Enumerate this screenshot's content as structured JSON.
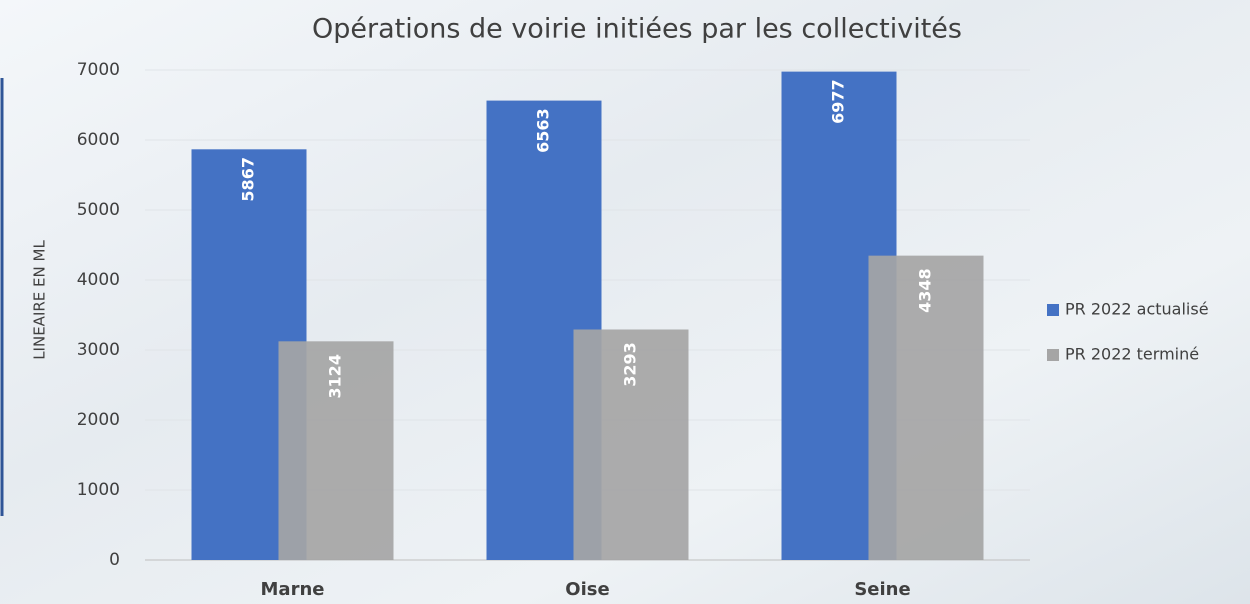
{
  "chart_data": {
    "type": "bar",
    "title": "Opérations de voirie initiées par les collectivités",
    "y_label": "LINEAIRE EN ML",
    "categories": [
      "Marne",
      "Oise",
      "Seine"
    ],
    "series": [
      {
        "name": "PR 2022 actualisé",
        "color": "#4472c4",
        "values": [
          5867,
          6563,
          6977
        ]
      },
      {
        "name": "PR 2022 terminé",
        "color": "#a5a5a5",
        "values": [
          3124,
          3293,
          4348
        ]
      }
    ],
    "ylim": [
      0,
      7000
    ],
    "yticks": [
      0,
      1000,
      2000,
      3000,
      4000,
      5000,
      6000,
      7000
    ],
    "grid": true,
    "legend": "right"
  }
}
